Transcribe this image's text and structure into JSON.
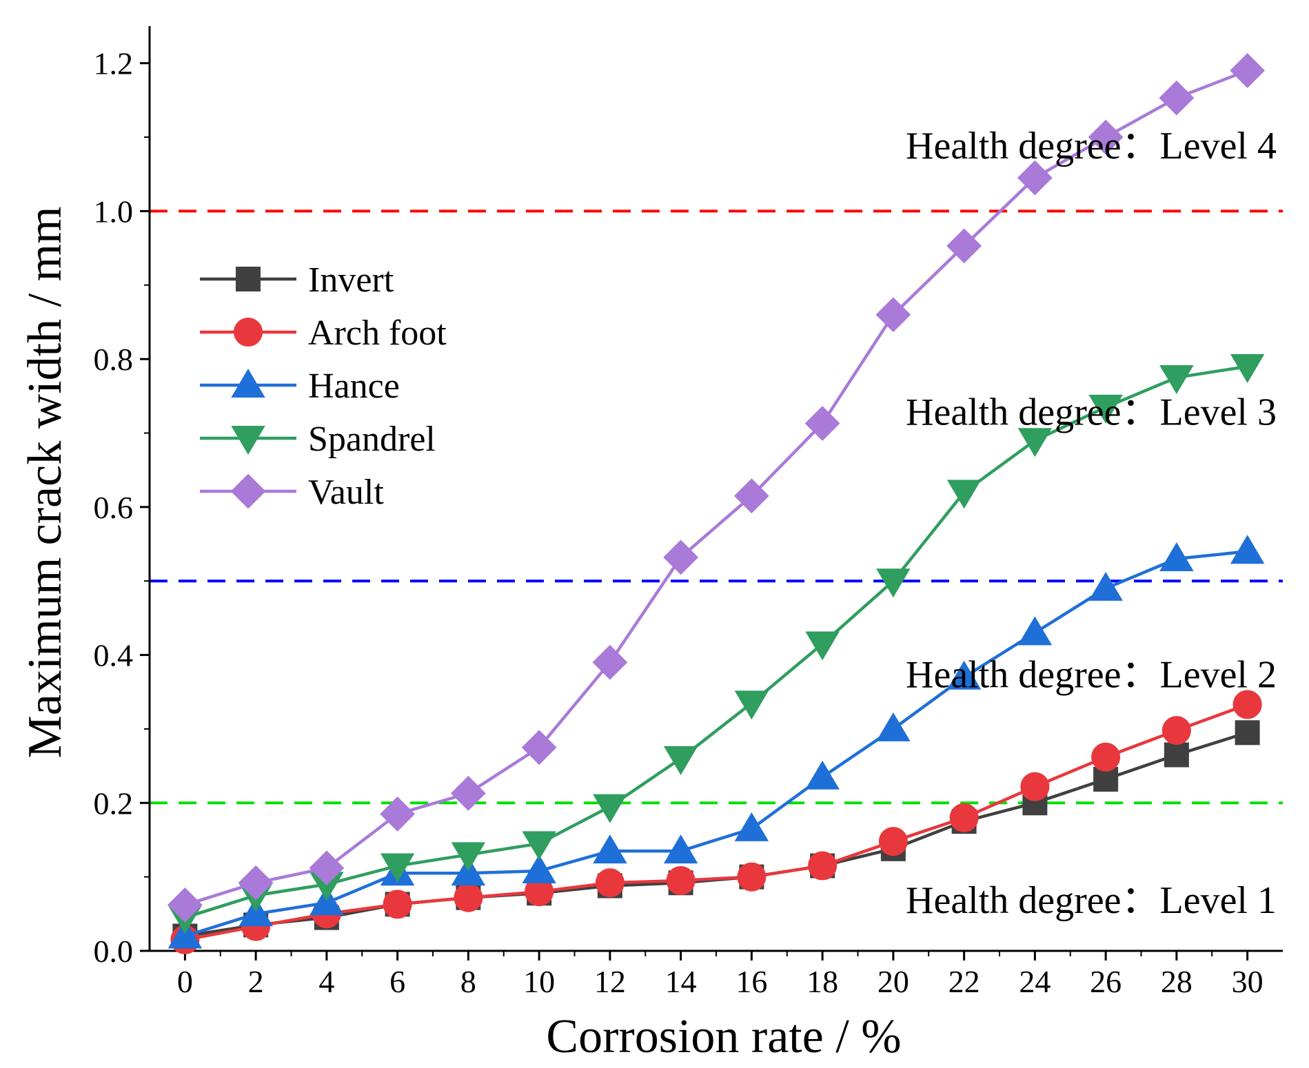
{
  "chart_data": {
    "type": "line",
    "title": "",
    "xlabel": "Corrosion rate / %",
    "ylabel": "Maximum crack width / mm",
    "xlim": [
      -1,
      31
    ],
    "ylim": [
      0,
      1.25
    ],
    "x_ticks": [
      0,
      2,
      4,
      6,
      8,
      10,
      12,
      14,
      16,
      18,
      20,
      22,
      24,
      26,
      28,
      30
    ],
    "x_tick_labels": [
      "0",
      "2",
      "4",
      "6",
      "8",
      "10",
      "12",
      "14",
      "16",
      "18",
      "20",
      "22",
      "24",
      "26",
      "28",
      "30"
    ],
    "y_ticks": [
      0.0,
      0.2,
      0.4,
      0.6,
      0.8,
      1.0,
      1.2
    ],
    "y_tick_labels": [
      "0.0",
      "0.2",
      "0.4",
      "0.6",
      "0.8",
      "1.0",
      "1.2"
    ],
    "grid": false,
    "legend_position": "upper-left",
    "x": [
      0,
      2,
      4,
      6,
      8,
      10,
      12,
      14,
      16,
      18,
      20,
      22,
      24,
      26,
      28,
      30
    ],
    "series": [
      {
        "name": "Invert",
        "color": "#404040",
        "marker": "square",
        "values": [
          0.02,
          0.035,
          0.045,
          0.063,
          0.072,
          0.078,
          0.088,
          0.092,
          0.1,
          0.115,
          0.138,
          0.175,
          0.2,
          0.232,
          0.265,
          0.295
        ]
      },
      {
        "name": "Arch foot",
        "color": "#e8383d",
        "marker": "circle",
        "values": [
          0.015,
          0.033,
          0.05,
          0.063,
          0.072,
          0.08,
          0.092,
          0.095,
          0.1,
          0.115,
          0.148,
          0.18,
          0.222,
          0.262,
          0.298,
          0.333
        ]
      },
      {
        "name": "Hance",
        "color": "#1f6fd8",
        "marker": "triangle-up",
        "values": [
          0.02,
          0.05,
          0.065,
          0.105,
          0.105,
          0.108,
          0.135,
          0.135,
          0.165,
          0.235,
          0.3,
          0.37,
          0.43,
          0.49,
          0.53,
          0.54
        ]
      },
      {
        "name": "Spandrel",
        "color": "#2f9e5e",
        "marker": "triangle-down",
        "values": [
          0.045,
          0.075,
          0.09,
          0.115,
          0.13,
          0.145,
          0.195,
          0.26,
          0.335,
          0.415,
          0.5,
          0.62,
          0.69,
          0.735,
          0.775,
          0.79
        ]
      },
      {
        "name": "Vault",
        "color": "#a97ad8",
        "marker": "diamond",
        "values": [
          0.062,
          0.092,
          0.112,
          0.185,
          0.213,
          0.275,
          0.39,
          0.532,
          0.615,
          0.713,
          0.86,
          0.953,
          1.045,
          1.1,
          1.153,
          1.19
        ]
      }
    ],
    "thresholds": [
      {
        "value": 1.0,
        "color": "#ff0000",
        "style": "dashed"
      },
      {
        "value": 0.5,
        "color": "#0000ff",
        "style": "dashed"
      },
      {
        "value": 0.2,
        "color": "#00e000",
        "style": "dashed"
      }
    ],
    "annotations": [
      {
        "text": "Health degree：Level 4",
        "y": 1.09
      },
      {
        "text": "Health degree：Level 3",
        "y": 0.73
      },
      {
        "text": "Health degree：Level 2",
        "y": 0.375
      },
      {
        "text": "Health degree：Level 1",
        "y": 0.07
      }
    ]
  }
}
